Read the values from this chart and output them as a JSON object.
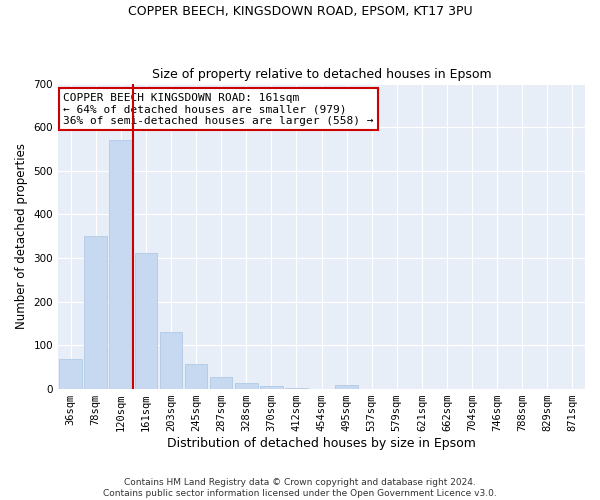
{
  "title1": "COPPER BEECH, KINGSDOWN ROAD, EPSOM, KT17 3PU",
  "title2": "Size of property relative to detached houses in Epsom",
  "xlabel": "Distribution of detached houses by size in Epsom",
  "ylabel": "Number of detached properties",
  "bar_labels": [
    "36sqm",
    "78sqm",
    "120sqm",
    "161sqm",
    "203sqm",
    "245sqm",
    "287sqm",
    "328sqm",
    "370sqm",
    "412sqm",
    "454sqm",
    "495sqm",
    "537sqm",
    "579sqm",
    "621sqm",
    "662sqm",
    "704sqm",
    "746sqm",
    "788sqm",
    "829sqm",
    "871sqm"
  ],
  "bar_values": [
    68,
    350,
    570,
    312,
    130,
    57,
    28,
    15,
    7,
    2,
    0,
    9,
    0,
    0,
    0,
    0,
    0,
    0,
    0,
    0,
    0
  ],
  "bar_color": "#c6d9f0",
  "bar_edge_color": "#a8c4e0",
  "vline_x": 2.5,
  "vline_color": "#cc0000",
  "annotation_text": "COPPER BEECH KINGSDOWN ROAD: 161sqm\n← 64% of detached houses are smaller (979)\n36% of semi-detached houses are larger (558) →",
  "annotation_box_color": "white",
  "annotation_box_edge": "#cc0000",
  "ylim": [
    0,
    700
  ],
  "yticks": [
    0,
    100,
    200,
    300,
    400,
    500,
    600,
    700
  ],
  "background_color": "#e8eef8",
  "grid_color": "white",
  "footer": "Contains HM Land Registry data © Crown copyright and database right 2024.\nContains public sector information licensed under the Open Government Licence v3.0."
}
